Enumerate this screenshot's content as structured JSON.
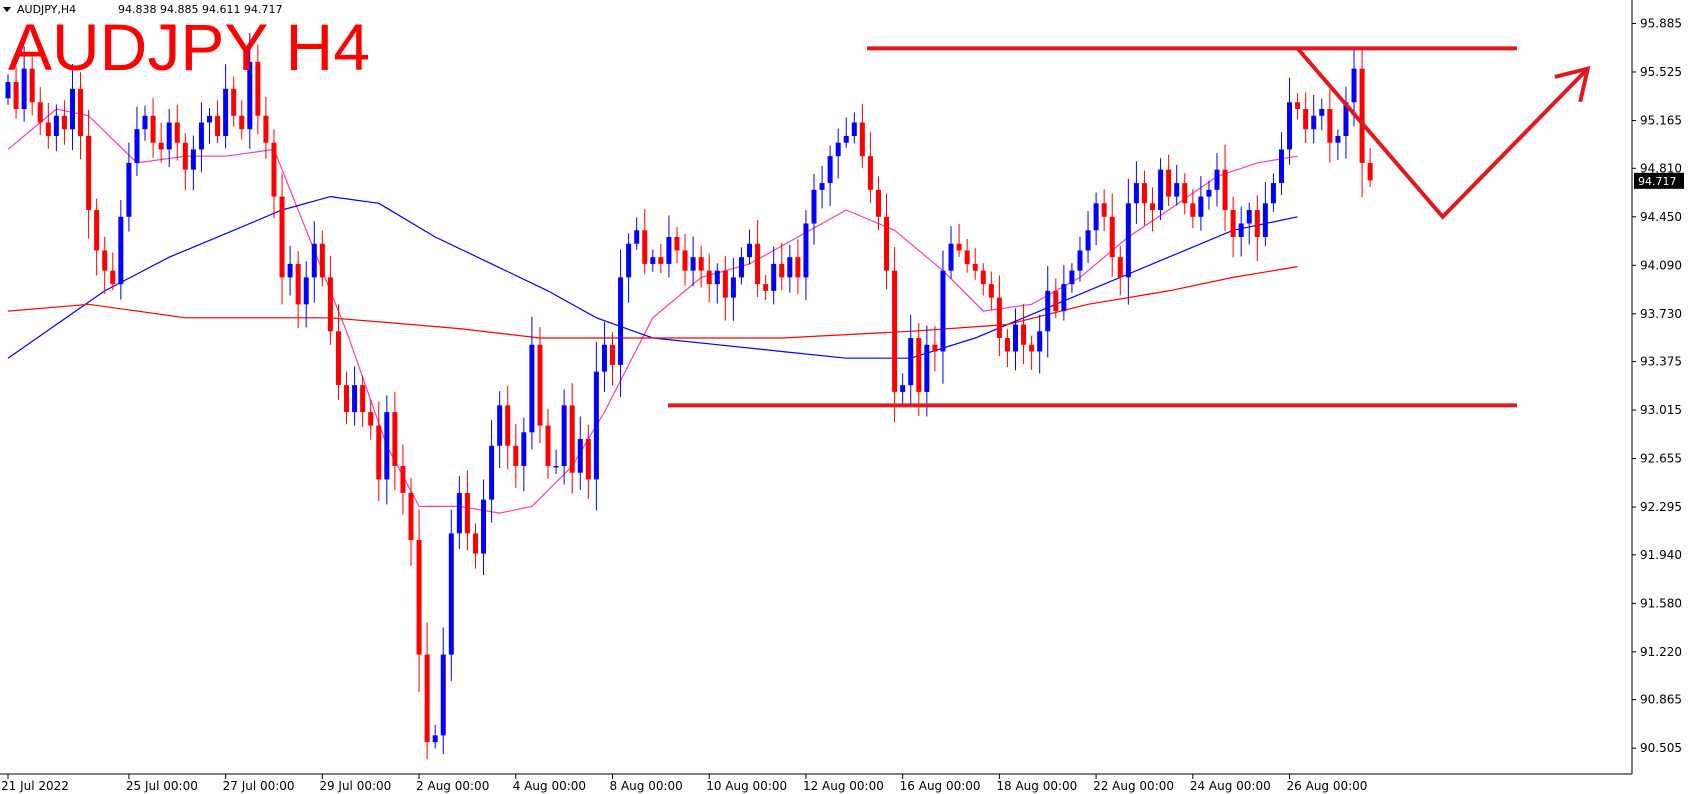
{
  "header": {
    "symbol_timeframe": "AUDJPY,H4",
    "ohlc": "94.838 94.885 94.611 94.717",
    "dropdown_icon": "triangle-down-icon"
  },
  "overlay": {
    "title": "AUDJPY H4",
    "title_color": "#ff0000"
  },
  "current_price": "94.717",
  "colors": {
    "bull": "#0000ff",
    "bear": "#ff0000",
    "ma_fast": "#ff3cb4",
    "ma_mid": "#0000ff",
    "ma_slow": "#ff0000",
    "annotation": "#e0191f",
    "price_tag_bg": "#000000"
  },
  "chart_data": {
    "type": "candlestick",
    "ylim": [
      90.38,
      96.0
    ],
    "yticks": [
      "95.885",
      "95.525",
      "95.165",
      "94.810",
      "94.450",
      "94.090",
      "93.730",
      "93.375",
      "93.015",
      "92.655",
      "92.295",
      "91.940",
      "91.580",
      "91.220",
      "90.865",
      "90.505"
    ],
    "xticks": [
      {
        "label": "21 Jul 2022",
        "index": 0
      },
      {
        "label": "25 Jul 00:00",
        "index": 15
      },
      {
        "label": "27 Jul 00:00",
        "index": 27
      },
      {
        "label": "29 Jul 00:00",
        "index": 39
      },
      {
        "label": "2 Aug 00:00",
        "index": 51
      },
      {
        "label": "4 Aug 00:00",
        "index": 63
      },
      {
        "label": "8 Aug 00:00",
        "index": 75
      },
      {
        "label": "10 Aug 00:00",
        "index": 87
      },
      {
        "label": "12 Aug 00:00",
        "index": 99
      },
      {
        "label": "16 Aug 00:00",
        "index": 111
      },
      {
        "label": "18 Aug 00:00",
        "index": 123
      },
      {
        "label": "22 Aug 00:00",
        "index": 135
      },
      {
        "label": "24 Aug 00:00",
        "index": 147
      },
      {
        "label": "26 Aug 00:00",
        "index": 159
      }
    ],
    "closes": [
      95.45,
      95.25,
      95.55,
      95.3,
      95.15,
      95.05,
      95.2,
      95.1,
      95.4,
      95.05,
      94.5,
      94.2,
      94.05,
      93.95,
      94.45,
      94.85,
      95.1,
      95.2,
      95.0,
      94.95,
      95.15,
      95.0,
      94.8,
      94.95,
      95.15,
      95.2,
      95.05,
      95.4,
      95.2,
      95.1,
      95.6,
      95.2,
      95.0,
      94.6,
      94.0,
      94.1,
      93.8,
      94.0,
      94.25,
      94.0,
      93.6,
      93.2,
      93.0,
      93.2,
      93.0,
      92.9,
      92.5,
      93.0,
      92.6,
      92.4,
      92.05,
      91.2,
      90.55,
      90.6,
      91.2,
      92.1,
      92.4,
      92.1,
      91.95,
      92.35,
      92.75,
      93.05,
      92.75,
      92.6,
      92.85,
      93.5,
      92.9,
      92.6,
      92.6,
      93.05,
      92.55,
      92.8,
      92.5,
      93.3,
      93.5,
      93.35,
      94.0,
      94.25,
      94.35,
      94.1,
      94.15,
      94.1,
      94.3,
      94.2,
      94.05,
      94.15,
      94.05,
      93.95,
      94.05,
      93.85,
      94.0,
      94.15,
      94.25,
      93.95,
      93.9,
      94.1,
      94.0,
      94.15,
      94.0,
      94.4,
      94.65,
      94.7,
      94.9,
      95.0,
      95.05,
      95.15,
      94.9,
      94.65,
      94.45,
      94.05,
      93.15,
      93.2,
      93.55,
      93.15,
      93.5,
      93.45,
      94.05,
      94.25,
      94.2,
      94.1,
      94.05,
      93.95,
      93.85,
      93.55,
      93.45,
      93.65,
      93.5,
      93.45,
      93.6,
      93.9,
      93.75,
      93.95,
      94.05,
      94.2,
      94.35,
      94.55,
      94.45,
      94.15,
      94.0,
      94.55,
      94.7,
      94.55,
      94.5,
      94.8,
      94.6,
      94.7,
      94.55,
      94.45,
      94.6,
      94.65,
      94.8,
      94.5,
      94.3,
      94.4,
      94.5,
      94.3,
      94.55,
      94.7,
      94.95,
      95.3,
      95.25,
      95.1,
      95.2,
      95.25,
      95.0,
      95.05,
      95.3,
      95.55,
      94.85,
      94.72
    ],
    "series": [
      {
        "name": "",
        "color": "#ff3cb4",
        "points": [
          [
            0,
            94.95
          ],
          [
            6,
            95.25
          ],
          [
            10,
            95.2
          ],
          [
            16,
            94.85
          ],
          [
            22,
            94.9
          ],
          [
            27,
            94.9
          ],
          [
            33,
            94.95
          ],
          [
            38,
            94.2
          ],
          [
            42,
            93.6
          ],
          [
            47,
            92.75
          ],
          [
            51,
            92.3
          ],
          [
            56,
            92.3
          ],
          [
            61,
            92.25
          ],
          [
            65,
            92.3
          ],
          [
            70,
            92.6
          ],
          [
            74,
            93.0
          ],
          [
            80,
            93.7
          ],
          [
            86,
            94.0
          ],
          [
            92,
            94.1
          ],
          [
            98,
            94.3
          ],
          [
            104,
            94.5
          ],
          [
            110,
            94.35
          ],
          [
            116,
            94.05
          ],
          [
            121,
            93.75
          ],
          [
            127,
            93.8
          ],
          [
            133,
            94.0
          ],
          [
            139,
            94.3
          ],
          [
            144,
            94.5
          ],
          [
            150,
            94.75
          ],
          [
            155,
            94.85
          ],
          [
            160,
            94.9
          ]
        ]
      },
      {
        "name": "",
        "color": "#0000ff",
        "points": [
          [
            0,
            93.4
          ],
          [
            6,
            93.65
          ],
          [
            12,
            93.9
          ],
          [
            20,
            94.15
          ],
          [
            28,
            94.35
          ],
          [
            34,
            94.5
          ],
          [
            40,
            94.6
          ],
          [
            46,
            94.55
          ],
          [
            53,
            94.3
          ],
          [
            60,
            94.1
          ],
          [
            67,
            93.9
          ],
          [
            73,
            93.7
          ],
          [
            80,
            93.55
          ],
          [
            88,
            93.5
          ],
          [
            96,
            93.45
          ],
          [
            104,
            93.4
          ],
          [
            112,
            93.4
          ],
          [
            120,
            93.55
          ],
          [
            128,
            93.75
          ],
          [
            136,
            93.95
          ],
          [
            144,
            94.15
          ],
          [
            152,
            94.35
          ],
          [
            160,
            94.45
          ]
        ]
      },
      {
        "name": "",
        "color": "#ff0000",
        "points": [
          [
            0,
            93.75
          ],
          [
            10,
            93.8
          ],
          [
            22,
            93.7
          ],
          [
            40,
            93.7
          ],
          [
            56,
            93.62
          ],
          [
            66,
            93.55
          ],
          [
            80,
            93.55
          ],
          [
            96,
            93.55
          ],
          [
            112,
            93.6
          ],
          [
            124,
            93.65
          ],
          [
            134,
            93.8
          ],
          [
            144,
            93.9
          ],
          [
            152,
            94.0
          ],
          [
            160,
            94.08
          ]
        ]
      }
    ],
    "annotations": {
      "resistance": 95.7,
      "support": 93.05,
      "projection_path": [
        [
          160,
          95.7
        ],
        [
          178,
          94.45
        ],
        [
          196,
          95.55
        ]
      ]
    }
  }
}
